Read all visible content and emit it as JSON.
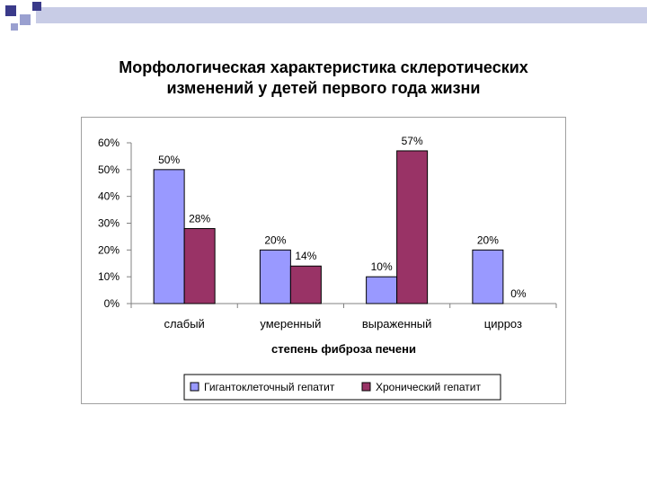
{
  "slide": {
    "title_line1": "Морфологическая характеристика склеротических",
    "title_line2": "изменений у детей первого года жизни"
  },
  "colors": {
    "series1": "#9999ff",
    "series2": "#993366",
    "header_square_dark": "#3a3a8a",
    "header_square_light": "#9aa0d0",
    "header_bar": "#c8cce6"
  },
  "chart_data": {
    "type": "bar",
    "categories": [
      "слабый",
      "умеренный",
      "выраженный",
      "цирроз"
    ],
    "series": [
      {
        "name": "Гигантоклеточный гепатит",
        "values": [
          50,
          20,
          10,
          20
        ],
        "labels": [
          "50%",
          "20%",
          "10%",
          "20%"
        ]
      },
      {
        "name": "Хронический гепатит",
        "values": [
          28,
          14,
          57,
          0
        ],
        "labels": [
          "28%",
          "14%",
          "57%",
          "0%"
        ]
      }
    ],
    "xlabel": "степень фиброза печени",
    "ylabel": "",
    "ylim": [
      0,
      60
    ],
    "yticks": [
      0,
      10,
      20,
      30,
      40,
      50,
      60
    ],
    "ytick_labels": [
      "0%",
      "10%",
      "20%",
      "30%",
      "40%",
      "50%",
      "60%"
    ],
    "grid": false,
    "legend": "bottom"
  }
}
